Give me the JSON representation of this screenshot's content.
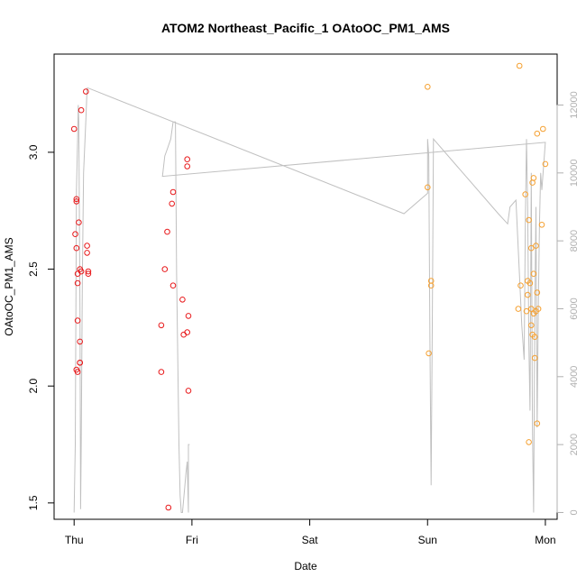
{
  "chart_data": {
    "type": "scatter",
    "title": "ATOM2 Northeast_Pacific_1 OAtoOC_PM1_AMS",
    "xlabel": "Date",
    "ylabel": "OAtoOC_PM1_AMS",
    "x_ticks": [
      {
        "label": "Thu",
        "x": 0
      },
      {
        "label": "Fri",
        "x": 1
      },
      {
        "label": "Sat",
        "x": 2
      },
      {
        "label": "Sun",
        "x": 3
      },
      {
        "label": "Mon",
        "x": 4
      }
    ],
    "xlim": [
      -0.17,
      4.1
    ],
    "ylim": [
      1.43,
      3.42
    ],
    "y_ticks": [
      1.5,
      2.0,
      2.5,
      3.0
    ],
    "y_tick_labels": [
      "1.5",
      "2.0",
      "2.5",
      "3.0"
    ],
    "y2lim": [
      -200,
      13500
    ],
    "y2_ticks": [
      0,
      2000,
      4000,
      6000,
      8000,
      10000,
      12000
    ],
    "y2_tick_labels": [
      "0",
      "2000",
      "4000",
      "6000",
      "8000",
      "10000",
      "12000"
    ],
    "grid": false,
    "colors": {
      "series_red": "#e8181a",
      "series_orange": "#f5a030",
      "secondary_line": "#c0c0c0",
      "right_axis": "#b0b0b0"
    },
    "series": [
      {
        "color": "#e8181a",
        "points": [
          [
            0.0,
            3.1
          ],
          [
            0.01,
            2.65
          ],
          [
            0.02,
            2.07
          ],
          [
            0.02,
            2.59
          ],
          [
            0.02,
            2.79
          ],
          [
            0.02,
            2.8
          ],
          [
            0.03,
            2.48
          ],
          [
            0.03,
            2.44
          ],
          [
            0.03,
            2.28
          ],
          [
            0.03,
            2.06
          ],
          [
            0.04,
            2.7
          ],
          [
            0.05,
            2.5
          ],
          [
            0.05,
            2.19
          ],
          [
            0.05,
            2.1
          ],
          [
            0.05,
            2.1
          ],
          [
            0.06,
            2.49
          ],
          [
            0.06,
            3.18
          ],
          [
            0.1,
            3.26
          ],
          [
            0.11,
            2.6
          ],
          [
            0.11,
            2.57
          ],
          [
            0.12,
            2.49
          ],
          [
            0.12,
            2.48
          ],
          [
            0.74,
            2.26
          ],
          [
            0.74,
            2.06
          ],
          [
            0.77,
            2.5
          ],
          [
            0.79,
            2.66
          ],
          [
            0.8,
            1.48
          ],
          [
            0.83,
            2.78
          ],
          [
            0.84,
            2.83
          ],
          [
            0.84,
            2.43
          ],
          [
            0.92,
            2.37
          ],
          [
            0.93,
            2.22
          ],
          [
            0.96,
            2.97
          ],
          [
            0.96,
            2.94
          ],
          [
            0.96,
            2.23
          ],
          [
            0.97,
            2.3
          ],
          [
            0.97,
            1.98
          ]
        ]
      },
      {
        "color": "#f5a030",
        "points": [
          [
            3.0,
            3.28
          ],
          [
            3.0,
            2.85
          ],
          [
            3.01,
            2.14
          ],
          [
            3.03,
            2.45
          ],
          [
            3.03,
            2.43
          ],
          [
            3.77,
            2.33
          ],
          [
            3.78,
            3.37
          ],
          [
            3.79,
            2.43
          ],
          [
            3.83,
            2.82
          ],
          [
            3.84,
            2.32
          ],
          [
            3.85,
            2.39
          ],
          [
            3.85,
            2.45
          ],
          [
            3.86,
            2.71
          ],
          [
            3.86,
            1.76
          ],
          [
            3.87,
            2.44
          ],
          [
            3.88,
            2.59
          ],
          [
            3.88,
            2.26
          ],
          [
            3.88,
            2.33
          ],
          [
            3.89,
            2.22
          ],
          [
            3.89,
            2.87
          ],
          [
            3.9,
            2.89
          ],
          [
            3.9,
            2.48
          ],
          [
            3.9,
            2.31
          ],
          [
            3.91,
            2.21
          ],
          [
            3.91,
            2.12
          ],
          [
            3.92,
            2.6
          ],
          [
            3.92,
            2.32
          ],
          [
            3.93,
            2.4
          ],
          [
            3.93,
            1.84
          ],
          [
            3.93,
            3.08
          ],
          [
            3.94,
            2.33
          ],
          [
            3.97,
            2.69
          ],
          [
            3.98,
            3.1
          ],
          [
            4.0,
            2.95
          ]
        ]
      }
    ],
    "secondary_line": [
      [
        0.0,
        0
      ],
      [
        0.01,
        2000
      ],
      [
        0.02,
        9500
      ],
      [
        0.03,
        11000
      ],
      [
        0.035,
        12000
      ],
      [
        0.04,
        11500
      ],
      [
        0.05,
        6000
      ],
      [
        0.055,
        100
      ],
      [
        0.06,
        2000
      ],
      [
        0.07,
        7000
      ],
      [
        0.08,
        10000
      ],
      [
        0.1,
        11600
      ],
      [
        0.11,
        12500
      ],
      [
        0.12,
        12500
      ],
      [
        2.8,
        8800
      ],
      [
        3.0,
        9400
      ],
      [
        3.0,
        11000
      ],
      [
        3.01,
        10500
      ],
      [
        3.02,
        5000
      ],
      [
        3.03,
        800
      ],
      [
        3.04,
        5500
      ],
      [
        3.05,
        11000
      ],
      [
        3.6,
        8800
      ],
      [
        3.68,
        8500
      ],
      [
        3.7,
        9000
      ],
      [
        3.75,
        9200
      ],
      [
        3.78,
        7000
      ],
      [
        3.8,
        5500
      ],
      [
        3.82,
        4500
      ],
      [
        3.83,
        8500
      ],
      [
        3.84,
        11000
      ],
      [
        3.85,
        9000
      ],
      [
        3.86,
        5000
      ],
      [
        3.87,
        3000
      ],
      [
        3.88,
        10000
      ],
      [
        3.89,
        2500
      ],
      [
        3.9,
        0
      ],
      [
        3.91,
        6000
      ],
      [
        3.92,
        9000
      ],
      [
        3.93,
        2500
      ],
      [
        3.94,
        6000
      ],
      [
        3.95,
        8500
      ],
      [
        3.96,
        10000
      ],
      [
        3.97,
        9500
      ],
      [
        4.0,
        10900
      ],
      [
        0.75,
        9900
      ],
      [
        0.77,
        10500
      ],
      [
        0.79,
        10700
      ],
      [
        0.82,
        11000
      ],
      [
        0.84,
        11500
      ],
      [
        0.86,
        11500
      ],
      [
        0.87,
        7000
      ],
      [
        0.88,
        4500
      ],
      [
        0.89,
        2000
      ],
      [
        0.9,
        500
      ],
      [
        0.91,
        0
      ],
      [
        0.92,
        0
      ],
      [
        0.94,
        800
      ],
      [
        0.95,
        1200
      ],
      [
        0.96,
        1500
      ],
      [
        0.97,
        0
      ],
      [
        0.97,
        2000
      ],
      [
        0.98,
        2000
      ]
    ]
  }
}
